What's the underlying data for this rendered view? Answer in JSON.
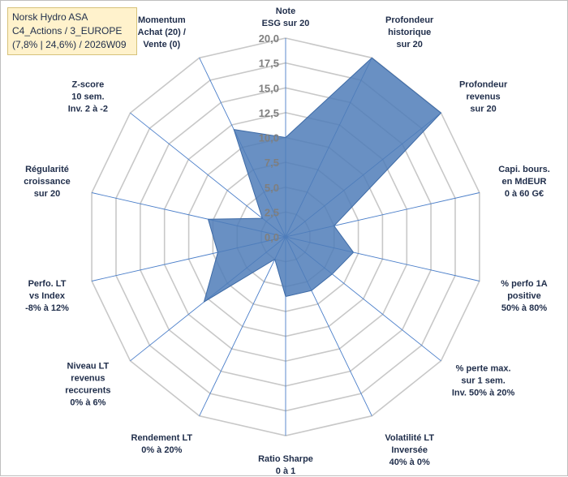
{
  "header": {
    "line1": "Norsk Hydro ASA",
    "line2": "C4_Actions / 3_EUROPE",
    "line3": "(7,8% | 24,6%) / 2026W09"
  },
  "chart_data": {
    "type": "radar",
    "rmin": 0,
    "rmax": 20,
    "tick_step": 2.5,
    "ticks": [
      "0,0",
      "2,5",
      "5,0",
      "7,5",
      "10,0",
      "12,5",
      "15,0",
      "17,5",
      "20,0"
    ],
    "axes": [
      [
        "Note",
        "ESG sur 20"
      ],
      [
        "Profondeur",
        "historique",
        "sur 20"
      ],
      [
        "Profondeur",
        "revenus",
        "sur 20"
      ],
      [
        "Capi. bours.",
        "en MdEUR",
        "0 à 60 G€"
      ],
      [
        "% perfo 1A",
        "positive",
        "50% à 80%"
      ],
      [
        "% perte max.",
        "sur 1 sem.",
        "Inv. 50% à 20%"
      ],
      [
        "Volatilité LT",
        "Inversée",
        "40% à 0%"
      ],
      [
        "Ratio Sharpe",
        "0 à 1"
      ],
      [
        "Rendement LT",
        "0% à 20%"
      ],
      [
        "Niveau LT",
        "revenus",
        "reccurents",
        "0% à 6%"
      ],
      [
        "Perfo. LT",
        "vs Index",
        "-8% à 12%"
      ],
      [
        "Régularité",
        "croissance",
        "sur 20"
      ],
      [
        "Z-score",
        "10 sem.",
        "Inv. 2 à -2"
      ],
      [
        "Momentum",
        "Achat (20) /",
        "Vente (0)"
      ]
    ],
    "series": [
      {
        "values": [
          10.0,
          20.0,
          20.0,
          5.0,
          7.0,
          6.0,
          6.0,
          6.0,
          2.5,
          10.5,
          7.0,
          8.0,
          3.0,
          12.0
        ],
        "color": "#4f7db8"
      }
    ],
    "grid": true
  }
}
